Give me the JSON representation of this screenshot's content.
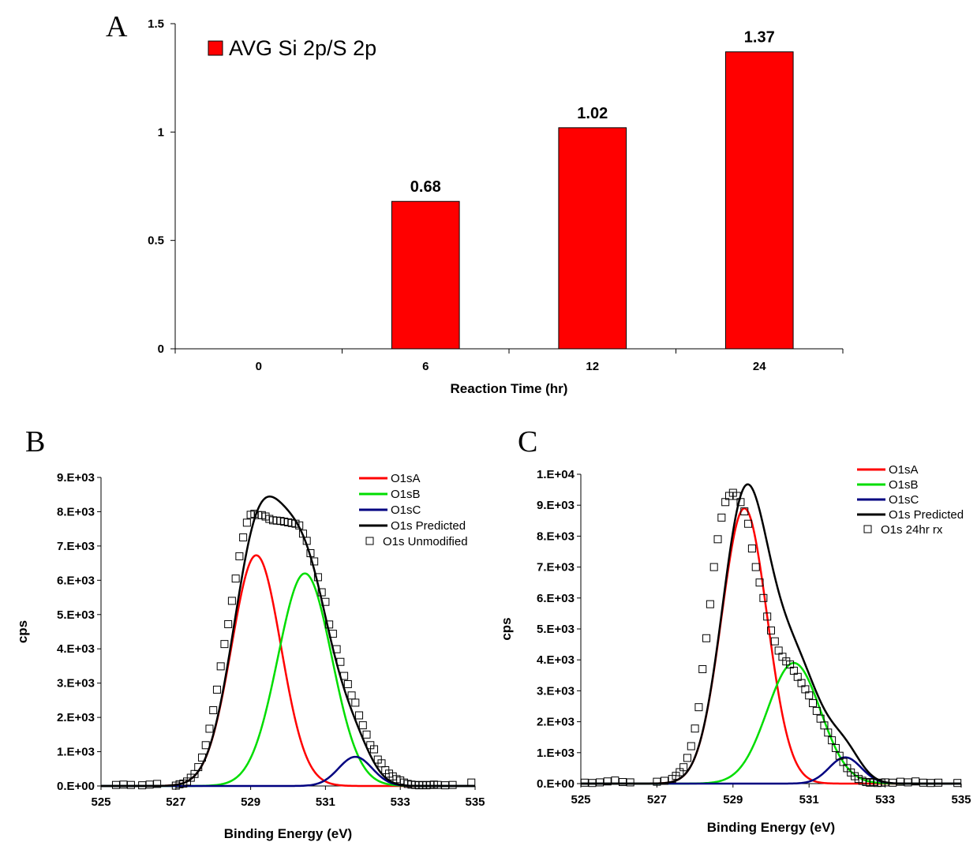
{
  "chart_data": [
    {
      "panel": "A",
      "type": "bar",
      "categories": [
        "0",
        "6",
        "12",
        "24"
      ],
      "values": [
        0,
        0.68,
        1.02,
        1.37
      ],
      "data_labels": [
        "",
        "0.68",
        "1.02",
        "1.37"
      ],
      "xlabel": "Reaction Time (hr)",
      "ylabel": "",
      "ylim": [
        0,
        1.5
      ],
      "yticks": [
        "0",
        "0.5",
        "1",
        "1.5"
      ],
      "legend": [
        "AVG Si 2p/S 2p"
      ],
      "legend_position": "top-left",
      "bar_color": "#ff0000",
      "grid": false
    },
    {
      "panel": "B",
      "type": "line",
      "xlabel": "Binding Energy (eV)",
      "ylabel": "cps",
      "xlim": [
        525,
        535
      ],
      "ylim": [
        0,
        9000
      ],
      "xticks": [
        "525",
        "527",
        "529",
        "531",
        "533",
        "535"
      ],
      "yticks": [
        "0.E+00",
        "1.E+03",
        "2.E+03",
        "3.E+03",
        "4.E+03",
        "5.E+03",
        "6.E+03",
        "7.E+03",
        "8.E+03",
        "9.E+03"
      ],
      "legend_position": "top-right",
      "grid": false,
      "series": [
        {
          "name": "O1sA",
          "kind": "gaussian",
          "center": 529.15,
          "amplitude": 6730,
          "sigma": 0.66,
          "color": "#ff0000"
        },
        {
          "name": "O1sB",
          "kind": "gaussian",
          "center": 530.45,
          "amplitude": 6200,
          "sigma": 0.72,
          "color": "#00dd00"
        },
        {
          "name": "O1sC",
          "kind": "gaussian",
          "center": 531.8,
          "amplitude": 850,
          "sigma": 0.45,
          "color": "#000080"
        },
        {
          "name": "O1s Predicted",
          "kind": "sum",
          "color": "#000000"
        },
        {
          "name": "O1s Unmodified",
          "kind": "points",
          "color": "#000000",
          "x": [
            525.4,
            525.6,
            525.8,
            526.1,
            526.3,
            526.5,
            527.0,
            527.1,
            527.2,
            527.3,
            527.4,
            527.5,
            527.6,
            527.7,
            527.8,
            527.9,
            528.0,
            528.1,
            528.2,
            528.3,
            528.4,
            528.5,
            528.6,
            528.7,
            528.8,
            528.9,
            529.0,
            529.1,
            529.2,
            529.3,
            529.4,
            529.5,
            529.6,
            529.7,
            529.8,
            529.9,
            530.0,
            530.1,
            530.2,
            530.3,
            530.4,
            530.5,
            530.6,
            530.7,
            530.8,
            530.9,
            531.0,
            531.1,
            531.2,
            531.3,
            531.4,
            531.5,
            531.6,
            531.7,
            531.8,
            531.9,
            532.0,
            532.1,
            532.2,
            532.3,
            532.4,
            532.5,
            532.6,
            532.7,
            532.8,
            532.9,
            533.0,
            533.1,
            533.2,
            533.3,
            533.4,
            533.5,
            533.6,
            533.7,
            533.8,
            533.9,
            534.0,
            534.2,
            534.4,
            534.9
          ],
          "y": [
            30,
            40,
            30,
            20,
            40,
            60,
            10,
            50,
            70,
            130,
            240,
            350,
            550,
            830,
            1190,
            1670,
            2210,
            2810,
            3490,
            4140,
            4720,
            5400,
            6050,
            6700,
            7250,
            7680,
            7910,
            7940,
            7900,
            7900,
            7860,
            7790,
            7750,
            7740,
            7730,
            7710,
            7690,
            7670,
            7650,
            7600,
            7360,
            7150,
            6790,
            6550,
            6090,
            5650,
            5370,
            4710,
            4440,
            3990,
            3620,
            3210,
            2970,
            2640,
            2430,
            2060,
            1770,
            1500,
            1190,
            1070,
            770,
            660,
            460,
            360,
            280,
            200,
            160,
            100,
            60,
            40,
            30,
            20,
            30,
            20,
            30,
            40,
            30,
            20,
            30,
            100
          ]
        }
      ]
    },
    {
      "panel": "C",
      "type": "line",
      "xlabel": "Binding Energy (eV)",
      "ylabel": "cps",
      "xlim": [
        525,
        535
      ],
      "ylim": [
        0,
        10000
      ],
      "xticks": [
        "525",
        "527",
        "529",
        "531",
        "533",
        "535"
      ],
      "yticks": [
        "0.E+00",
        "1.E+03",
        "2.E+03",
        "3.E+03",
        "4.E+03",
        "5.E+03",
        "6.E+03",
        "7.E+03",
        "8.E+03",
        "9.E+03",
        "1.E+04"
      ],
      "legend_position": "top-right",
      "grid": false,
      "series": [
        {
          "name": "O1sA",
          "kind": "gaussian",
          "center": 529.3,
          "amplitude": 8900,
          "sigma": 0.6,
          "color": "#ff0000"
        },
        {
          "name": "O1sB",
          "kind": "gaussian",
          "center": 530.6,
          "amplitude": 3900,
          "sigma": 0.7,
          "color": "#00dd00"
        },
        {
          "name": "O1sC",
          "kind": "gaussian",
          "center": 531.95,
          "amplitude": 850,
          "sigma": 0.42,
          "color": "#000080"
        },
        {
          "name": "O1s Predicted",
          "kind": "sum",
          "color": "#000000"
        },
        {
          "name": "O1s 24hr rx",
          "kind": "points",
          "color": "#000000",
          "x": [
            525.1,
            525.3,
            525.5,
            525.7,
            525.9,
            526.1,
            526.3,
            527.0,
            527.2,
            527.4,
            527.5,
            527.6,
            527.7,
            527.8,
            527.9,
            528.0,
            528.1,
            528.2,
            528.3,
            528.4,
            528.5,
            528.6,
            528.7,
            528.8,
            528.9,
            529.0,
            529.1,
            529.2,
            529.3,
            529.4,
            529.5,
            529.6,
            529.7,
            529.8,
            529.9,
            530.0,
            530.1,
            530.2,
            530.3,
            530.4,
            530.5,
            530.6,
            530.7,
            530.8,
            530.9,
            531.0,
            531.1,
            531.2,
            531.3,
            531.4,
            531.5,
            531.6,
            531.7,
            531.8,
            531.9,
            532.0,
            532.1,
            532.2,
            532.3,
            532.4,
            532.5,
            532.6,
            532.7,
            532.8,
            532.9,
            533.0,
            533.2,
            533.4,
            533.6,
            533.8,
            534.0,
            534.2,
            534.4,
            534.9
          ],
          "y": [
            30,
            20,
            40,
            70,
            100,
            50,
            40,
            60,
            90,
            150,
            250,
            370,
            530,
            830,
            1210,
            1780,
            2470,
            3700,
            4700,
            5800,
            7000,
            7900,
            8600,
            9100,
            9300,
            9400,
            9300,
            9100,
            8800,
            8400,
            7600,
            7000,
            6500,
            6000,
            5400,
            4950,
            4600,
            4300,
            4100,
            3950,
            3850,
            3650,
            3450,
            3250,
            3050,
            2850,
            2600,
            2350,
            2100,
            1880,
            1650,
            1400,
            1150,
            900,
            700,
            500,
            360,
            240,
            150,
            90,
            50,
            30,
            50,
            20,
            30,
            40,
            30,
            60,
            40,
            70,
            30,
            20,
            30,
            20
          ]
        }
      ]
    }
  ]
}
